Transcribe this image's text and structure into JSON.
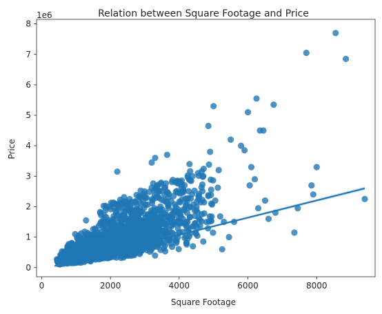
{
  "chart_data": {
    "type": "scatter",
    "title": "Relation between Square Footage and Price",
    "xlabel": "Square Footage",
    "ylabel": "Price",
    "y_offset_label": "1e6",
    "xlim": [
      -150,
      9700
    ],
    "ylim": [
      -0.3,
      8.15
    ],
    "x_ticks": [
      0,
      2000,
      4000,
      6000,
      8000
    ],
    "x_tick_labels": [
      "0",
      "2000",
      "4000",
      "6000",
      "8000"
    ],
    "y_ticks": [
      0,
      1,
      2,
      3,
      4,
      5,
      6,
      7,
      8
    ],
    "y_tick_labels": [
      "0",
      "1",
      "2",
      "3",
      "4",
      "5",
      "6",
      "7",
      "8"
    ],
    "grid": false,
    "legend": "none",
    "point_color": "#1f77b4",
    "regression": {
      "x": [
        370,
        9400
      ],
      "y": [
        0.05,
        2.6
      ]
    },
    "outliers": {
      "x": [
        8550,
        7700,
        8850,
        6250,
        6750,
        5000,
        6000,
        4850,
        5500,
        5800,
        5900,
        6350,
        6450,
        6100,
        6200,
        8000,
        7850,
        7900,
        7450,
        9400,
        7350,
        6500,
        6800,
        6050,
        6300,
        6600,
        5300,
        5150,
        5050,
        4900,
        4700,
        4550,
        4300,
        3650,
        3300,
        3200,
        2200,
        3900,
        4400,
        5600,
        5450,
        5250
      ],
      "y": [
        7.7,
        7.05,
        6.85,
        5.55,
        5.35,
        5.3,
        5.1,
        4.65,
        4.2,
        4.0,
        3.85,
        4.5,
        4.5,
        3.3,
        2.9,
        3.3,
        2.7,
        2.4,
        1.95,
        2.25,
        1.15,
        2.2,
        1.8,
        2.7,
        1.95,
        1.6,
        1.5,
        3.2,
        2.2,
        3.8,
        3.0,
        3.1,
        3.4,
        3.7,
        3.6,
        3.45,
        3.15,
        0.9,
        0.7,
        1.5,
        1.0,
        0.6
      ]
    }
  }
}
